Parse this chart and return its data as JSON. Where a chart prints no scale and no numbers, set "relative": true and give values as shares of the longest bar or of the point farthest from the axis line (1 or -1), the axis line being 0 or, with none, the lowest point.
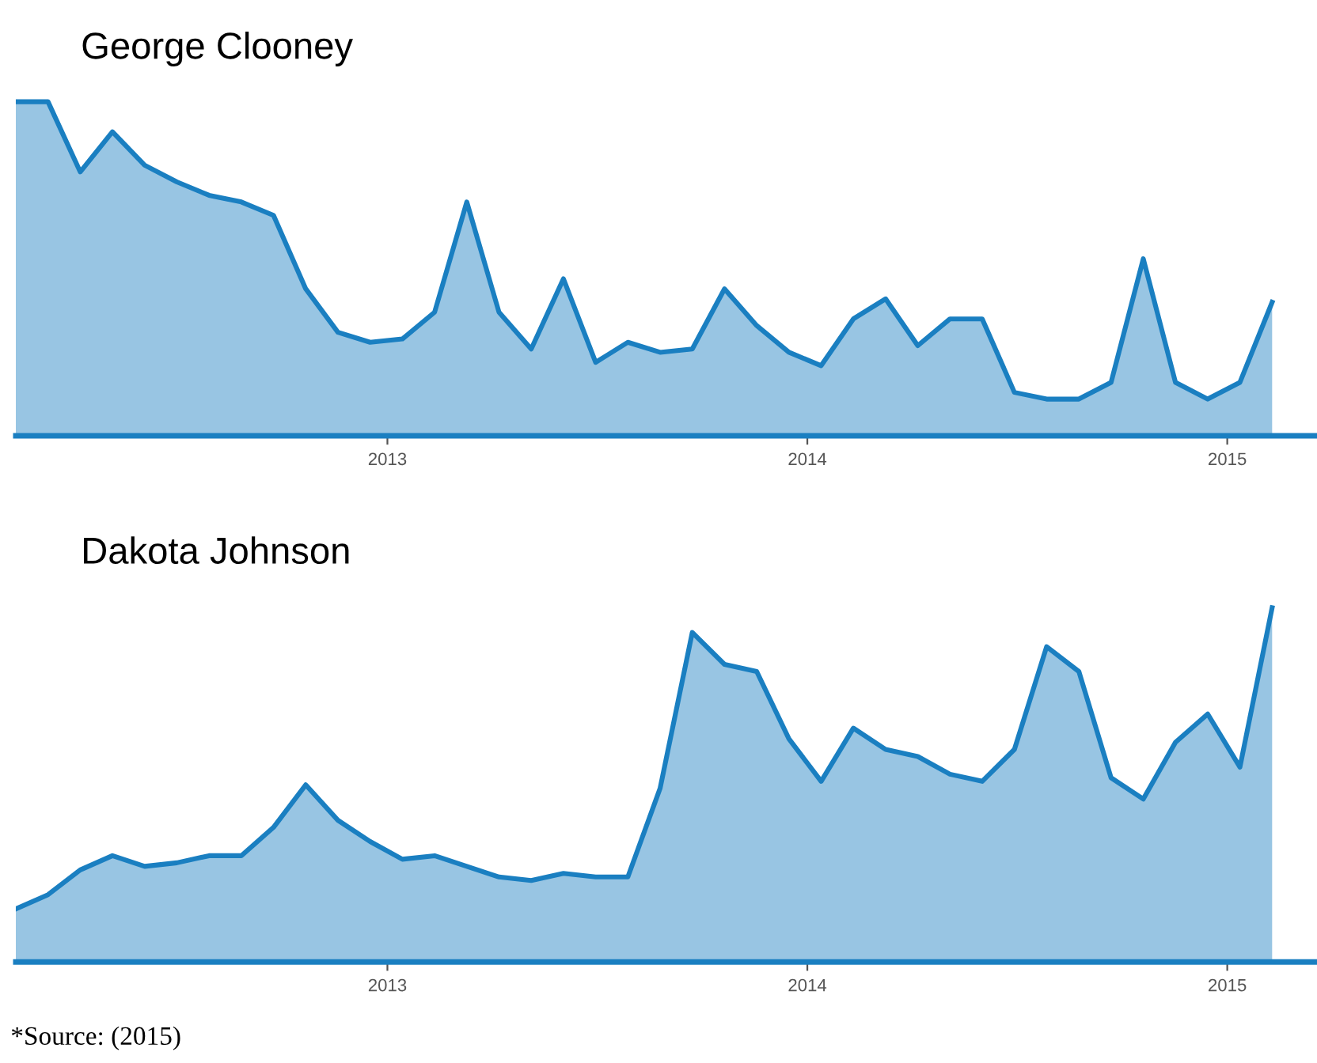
{
  "chart_data": [
    {
      "type": "area",
      "title": "George Clooney",
      "relative": true,
      "grid": false,
      "legend": false,
      "x": [
        "2012-02-13",
        "2012-03-12",
        "2012-04-09",
        "2012-05-07",
        "2012-06-04",
        "2012-07-02",
        "2012-07-30",
        "2012-08-27",
        "2012-09-24",
        "2012-10-22",
        "2012-11-19",
        "2012-12-17",
        "2013-01-14",
        "2013-02-11",
        "2013-03-11",
        "2013-04-08",
        "2013-05-06",
        "2013-06-03",
        "2013-07-01",
        "2013-07-29",
        "2013-08-26",
        "2013-09-23",
        "2013-10-21",
        "2013-11-18",
        "2013-12-16",
        "2014-01-13",
        "2014-02-10",
        "2014-03-10",
        "2014-04-07",
        "2014-05-05",
        "2014-06-02",
        "2014-06-30",
        "2014-07-28",
        "2014-08-25",
        "2014-09-22",
        "2014-10-20",
        "2014-11-17",
        "2014-12-15",
        "2015-01-12",
        "2015-02-09"
      ],
      "xlim": [
        "2012-02-13",
        "2015-03-20"
      ],
      "xticks": [
        "2013",
        "2014",
        "2015"
      ],
      "series": [
        {
          "color": "#1a7fc1",
          "values": [
            1.0,
            1.0,
            0.79,
            0.91,
            0.81,
            0.76,
            0.72,
            0.7,
            0.66,
            0.44,
            0.31,
            0.28,
            0.29,
            0.37,
            0.7,
            0.37,
            0.26,
            0.47,
            0.22,
            0.28,
            0.25,
            0.26,
            0.44,
            0.33,
            0.25,
            0.21,
            0.35,
            0.41,
            0.27,
            0.35,
            0.35,
            0.13,
            0.11,
            0.11,
            0.16,
            0.53,
            0.16,
            0.11,
            0.16,
            0.4
          ]
        }
      ]
    },
    {
      "type": "area",
      "title": "Dakota Johnson",
      "relative": true,
      "grid": false,
      "legend": false,
      "x": [
        "2012-02-13",
        "2012-03-12",
        "2012-04-09",
        "2012-05-07",
        "2012-06-04",
        "2012-07-02",
        "2012-07-30",
        "2012-08-27",
        "2012-09-24",
        "2012-10-22",
        "2012-11-19",
        "2012-12-17",
        "2013-01-14",
        "2013-02-11",
        "2013-03-11",
        "2013-04-08",
        "2013-05-06",
        "2013-06-03",
        "2013-07-01",
        "2013-07-29",
        "2013-08-26",
        "2013-09-23",
        "2013-10-21",
        "2013-11-18",
        "2013-12-16",
        "2014-01-13",
        "2014-02-10",
        "2014-03-10",
        "2014-04-07",
        "2014-05-05",
        "2014-06-02",
        "2014-06-30",
        "2014-07-28",
        "2014-08-25",
        "2014-09-22",
        "2014-10-20",
        "2014-11-17",
        "2014-12-15",
        "2015-01-12",
        "2015-02-09"
      ],
      "xlim": [
        "2012-02-13",
        "2015-03-20"
      ],
      "xticks": [
        "2013",
        "2014",
        "2015"
      ],
      "annotations": [
        "*Source: (2015)"
      ],
      "series": [
        {
          "color": "#1a7fc1",
          "values": [
            0.15,
            0.19,
            0.26,
            0.3,
            0.27,
            0.28,
            0.3,
            0.3,
            0.38,
            0.5,
            0.4,
            0.34,
            0.29,
            0.3,
            0.27,
            0.24,
            0.23,
            0.25,
            0.24,
            0.24,
            0.49,
            0.93,
            0.84,
            0.82,
            0.63,
            0.51,
            0.66,
            0.6,
            0.58,
            0.53,
            0.51,
            0.6,
            0.89,
            0.82,
            0.52,
            0.46,
            0.62,
            0.7,
            0.55,
            1.0
          ]
        }
      ]
    }
  ]
}
